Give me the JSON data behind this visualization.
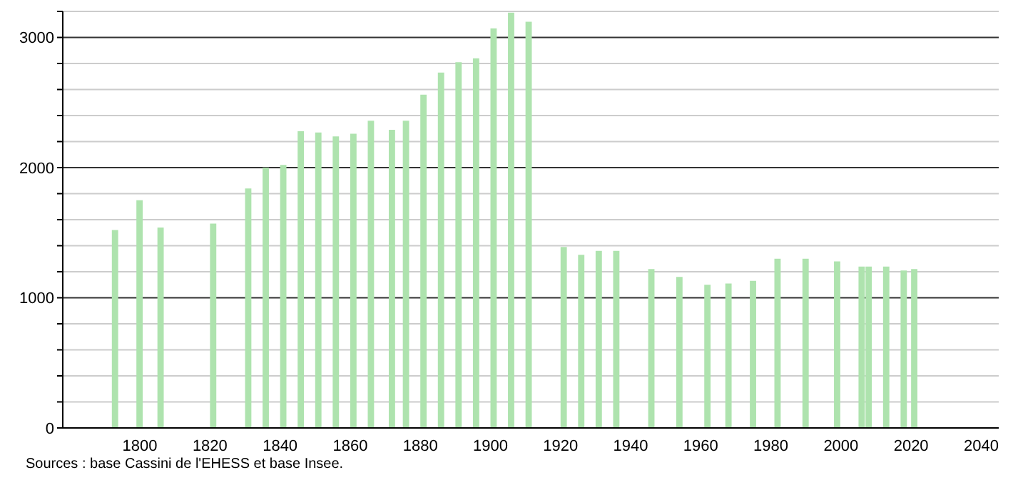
{
  "chart_data": {
    "type": "bar",
    "x": [
      1793,
      1800,
      1806,
      1821,
      1831,
      1836,
      1841,
      1846,
      1851,
      1856,
      1861,
      1866,
      1872,
      1876,
      1881,
      1886,
      1891,
      1896,
      1901,
      1906,
      1911,
      1921,
      1926,
      1931,
      1936,
      1946,
      1954,
      1962,
      1968,
      1975,
      1982,
      1990,
      1999,
      2006,
      2008,
      2013,
      2018,
      2021
    ],
    "values": [
      1520,
      1750,
      1540,
      1570,
      1840,
      2000,
      2020,
      2280,
      2270,
      2240,
      2260,
      2360,
      2290,
      2360,
      2560,
      2730,
      2810,
      2840,
      3070,
      3190,
      3120,
      1390,
      1330,
      1360,
      1360,
      1220,
      1160,
      1100,
      1110,
      1130,
      1300,
      1300,
      1280,
      1240,
      1240,
      1240,
      1210,
      1220
    ],
    "color": "#aee3ae",
    "xlim": [
      1778,
      2045
    ],
    "xticks": [
      1800,
      1820,
      1840,
      1860,
      1880,
      1900,
      1920,
      1940,
      1960,
      1980,
      2000,
      2020,
      2040
    ],
    "ylim": [
      0,
      3200
    ],
    "yticks": [
      0,
      {
        "value": 200,
        "label": null
      },
      {
        "value": 400,
        "label": null
      },
      {
        "value": 600,
        "label": null
      },
      {
        "value": 800,
        "label": null
      },
      1000,
      {
        "value": 1200,
        "label": null
      },
      {
        "value": 1400,
        "label": null
      },
      {
        "value": 1600,
        "label": null
      },
      {
        "value": 1800,
        "label": null
      },
      2000,
      {
        "value": 2200,
        "label": null
      },
      {
        "value": 2400,
        "label": null
      },
      {
        "value": 2600,
        "label": null
      },
      {
        "value": 2800,
        "label": null
      },
      3000,
      {
        "value": 3200,
        "label": null
      }
    ],
    "grid": "y",
    "annotations": [
      "Sources : base Cassini de l'EHESS et base Insee."
    ]
  }
}
